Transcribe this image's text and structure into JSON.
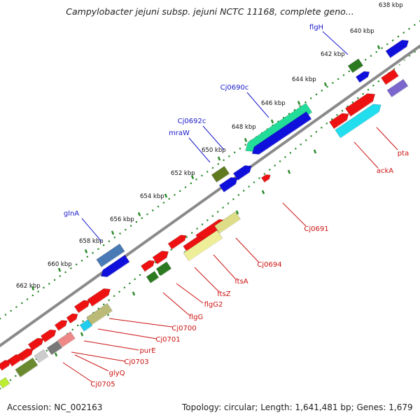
{
  "title": "Campylobacter jejuni subsp. jejuni NCTC 11168, complete geno...",
  "footer": {
    "accession": "Accession: NC_002163",
    "stats": "Topology: circular; Length: 1,641,481 bp; Genes: 1,679"
  },
  "colors": {
    "backbone": "#8a8a8a",
    "dots": "#2a8a2a",
    "blue_label": "#1a1acc",
    "red_label": "#cc1111"
  },
  "ticks": [
    "638 kbp",
    "640 kbp",
    "642 kbp",
    "644 kbp",
    "646 kbp",
    "648 kbp",
    "650 kbp",
    "652 kbp",
    "654 kbp",
    "656 kbp",
    "658 kbp",
    "660 kbp",
    "662 kbp"
  ],
  "labels_plus": [
    "flgH",
    "Cj0690c",
    "Cj0692c",
    "mraW",
    "glnA"
  ],
  "labels_minus": [
    "pta",
    "ackA",
    "Cj0691",
    "Cj0694",
    "ftsA",
    "ftsZ",
    "flgG2",
    "flgG",
    "Cj0700",
    "Cj0701",
    "purE",
    "Cj0703",
    "glyQ",
    "Cj0705"
  ]
}
